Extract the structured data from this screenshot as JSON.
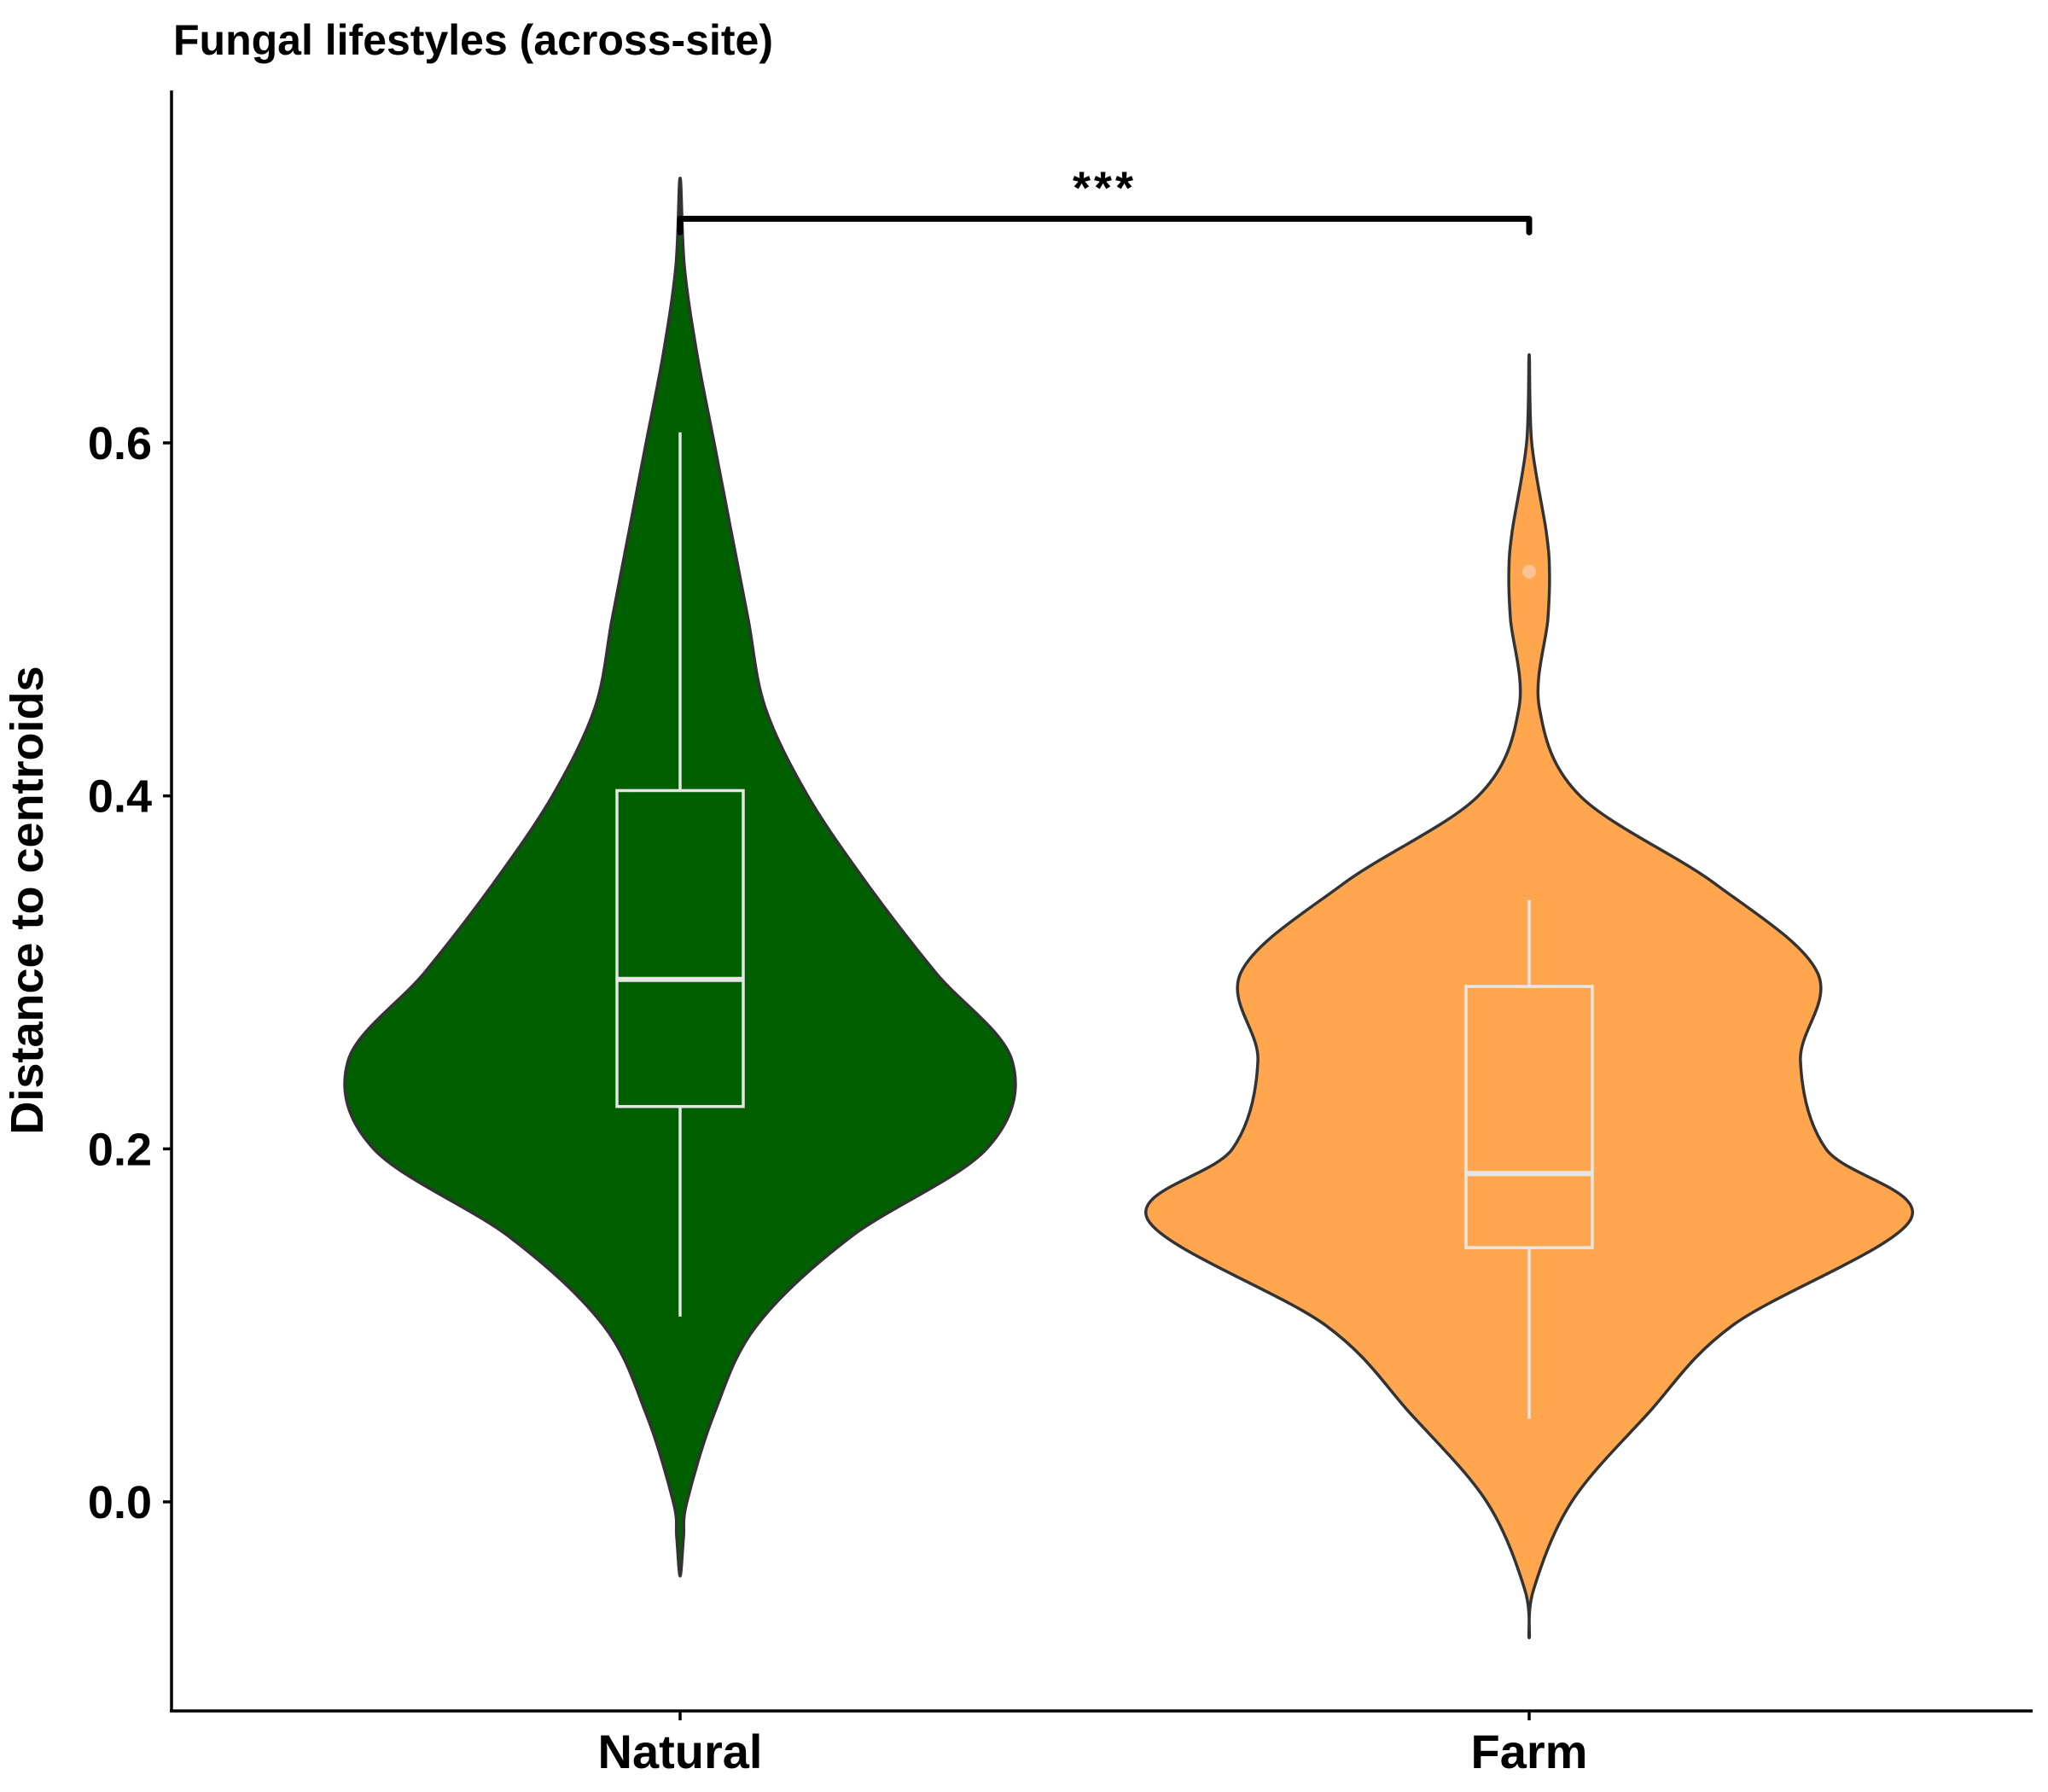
{
  "chart_data": {
    "type": "violin",
    "title": "Fungal lifestyles (across-site)",
    "xlabel": "",
    "ylabel": "Distance to centroids",
    "ylim": [
      -0.12,
      0.8
    ],
    "yticks": [
      0.0,
      0.2,
      0.4,
      0.6
    ],
    "ytick_labels": [
      "0.0",
      "0.2",
      "0.4",
      "0.6"
    ],
    "grid": false,
    "legend": "none",
    "categories": [
      "Natural",
      "Farm"
    ],
    "series": [
      {
        "category": "Natural",
        "color": "#006000",
        "box": {
          "whisker_low": 0.105,
          "q1": 0.224,
          "median": 0.296,
          "q3": 0.403,
          "whisker_high": 0.606
        },
        "outliers": [],
        "density_profile": [
          [
            -0.042,
            0.0
          ],
          [
            -0.02,
            0.004
          ],
          [
            0.0,
            0.008
          ],
          [
            0.05,
            0.04
          ],
          [
            0.1,
            0.09
          ],
          [
            0.15,
            0.2
          ],
          [
            0.2,
            0.36
          ],
          [
            0.25,
            0.39
          ],
          [
            0.3,
            0.3
          ],
          [
            0.35,
            0.22
          ],
          [
            0.4,
            0.15
          ],
          [
            0.45,
            0.1
          ],
          [
            0.5,
            0.08
          ],
          [
            0.55,
            0.06
          ],
          [
            0.6,
            0.04
          ],
          [
            0.65,
            0.02
          ],
          [
            0.7,
            0.005
          ],
          [
            0.75,
            0.0
          ]
        ]
      },
      {
        "category": "Farm",
        "color": "#FFA64F",
        "box": {
          "whisker_low": 0.047,
          "q1": 0.144,
          "median": 0.186,
          "q3": 0.292,
          "whisker_high": 0.341
        },
        "outliers": [
          0.527
        ],
        "density_profile": [
          [
            -0.077,
            0.0
          ],
          [
            -0.05,
            0.005
          ],
          [
            0.0,
            0.05
          ],
          [
            0.05,
            0.14
          ],
          [
            0.1,
            0.24
          ],
          [
            0.16,
            0.45
          ],
          [
            0.2,
            0.35
          ],
          [
            0.25,
            0.32
          ],
          [
            0.3,
            0.34
          ],
          [
            0.35,
            0.22
          ],
          [
            0.4,
            0.06
          ],
          [
            0.45,
            0.012
          ],
          [
            0.5,
            0.022
          ],
          [
            0.527,
            0.024
          ],
          [
            0.55,
            0.02
          ],
          [
            0.6,
            0.003
          ],
          [
            0.65,
            0.0
          ]
        ]
      }
    ],
    "annotations": [
      {
        "type": "significance",
        "label": "***",
        "between": [
          "Natural",
          "Farm"
        ],
        "y": 0.727
      }
    ]
  }
}
